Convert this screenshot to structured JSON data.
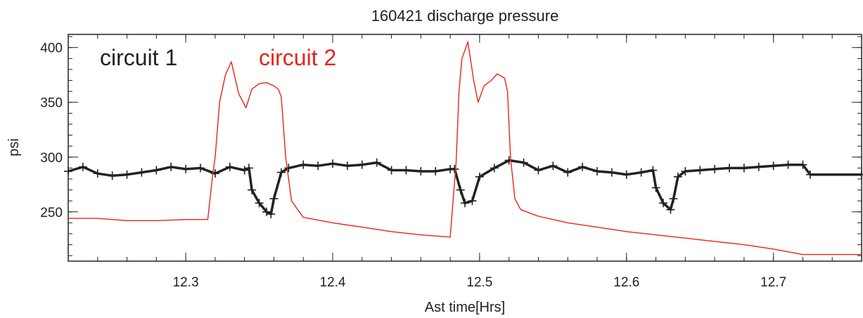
{
  "chart_data": {
    "type": "line",
    "title": "160421 discharge pressure",
    "xlabel": "Ast time[Hrs]",
    "ylabel": "psi",
    "xlim": [
      12.22,
      12.76
    ],
    "ylim": [
      205,
      412
    ],
    "x_ticks": [
      "12.3",
      "12.4",
      "12.5",
      "12.6",
      "12.7"
    ],
    "y_ticks": [
      "250",
      "300",
      "350",
      "400"
    ],
    "legend_placement": "top-left",
    "series": [
      {
        "name": "circuit 1",
        "color": "#222222",
        "marker": "plus",
        "x": [
          12.22,
          12.23,
          12.24,
          12.25,
          12.26,
          12.27,
          12.28,
          12.29,
          12.3,
          12.31,
          12.32,
          12.33,
          12.34,
          12.343,
          12.345,
          12.35,
          12.355,
          12.358,
          12.36,
          12.365,
          12.37,
          12.38,
          12.39,
          12.4,
          12.41,
          12.42,
          12.43,
          12.44,
          12.45,
          12.46,
          12.47,
          12.48,
          12.483,
          12.487,
          12.49,
          12.495,
          12.5,
          12.51,
          12.52,
          12.53,
          12.54,
          12.55,
          12.56,
          12.57,
          12.58,
          12.59,
          12.6,
          12.61,
          12.618,
          12.62,
          12.625,
          12.63,
          12.632,
          12.635,
          12.64,
          12.65,
          12.66,
          12.67,
          12.68,
          12.69,
          12.7,
          12.71,
          12.72,
          12.725,
          12.76
        ],
        "y": [
          287,
          291,
          285,
          283,
          284,
          286,
          288,
          291,
          289,
          290,
          285,
          291,
          288,
          290,
          270,
          258,
          250,
          248,
          262,
          286,
          290,
          293,
          292,
          294,
          292,
          293,
          295,
          288,
          288,
          287,
          287,
          289,
          289,
          270,
          258,
          260,
          282,
          290,
          297,
          295,
          288,
          292,
          286,
          291,
          287,
          286,
          284,
          286,
          288,
          272,
          258,
          252,
          262,
          282,
          287,
          288,
          289,
          290,
          290,
          291,
          292,
          293,
          293,
          284,
          284
        ]
      },
      {
        "name": "circuit 2",
        "color": "#e8231c",
        "marker": "none",
        "x": [
          12.22,
          12.24,
          12.26,
          12.28,
          12.3,
          12.315,
          12.318,
          12.32,
          12.323,
          12.327,
          12.331,
          12.336,
          12.341,
          12.345,
          12.35,
          12.355,
          12.36,
          12.363,
          12.365,
          12.368,
          12.372,
          12.38,
          12.4,
          12.42,
          12.44,
          12.46,
          12.48,
          12.484,
          12.486,
          12.488,
          12.492,
          12.496,
          12.499,
          12.503,
          12.508,
          12.512,
          12.517,
          12.519,
          12.521,
          12.524,
          12.528,
          12.54,
          12.56,
          12.58,
          12.6,
          12.62,
          12.64,
          12.66,
          12.68,
          12.7,
          12.72,
          12.74,
          12.76
        ],
        "y": [
          244,
          244,
          242,
          242,
          243,
          243,
          280,
          300,
          350,
          375,
          387,
          358,
          345,
          362,
          367,
          368,
          365,
          362,
          355,
          300,
          260,
          245,
          240,
          236,
          232,
          229,
          227,
          295,
          360,
          390,
          405,
          370,
          350,
          365,
          370,
          376,
          372,
          360,
          300,
          262,
          252,
          246,
          240,
          236,
          232,
          229,
          226,
          223,
          220,
          216,
          211,
          211,
          211
        ]
      }
    ]
  }
}
